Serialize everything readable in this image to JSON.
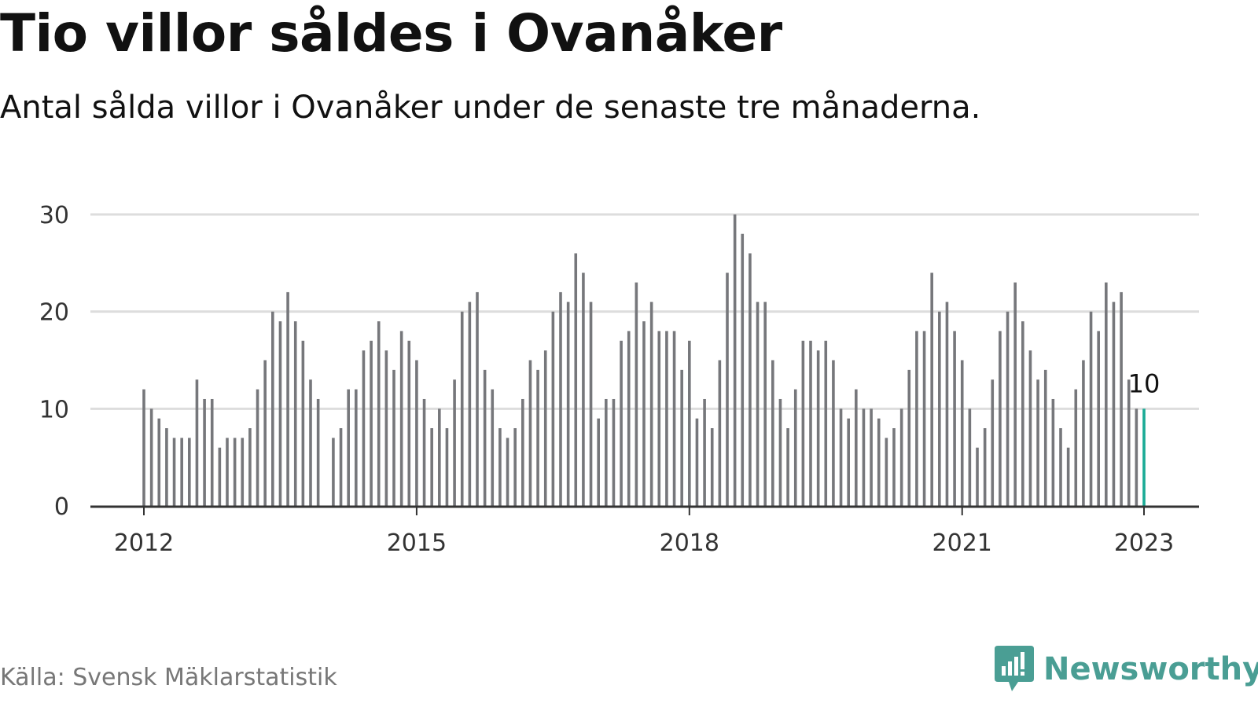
{
  "header": {
    "title": "Tio villor såldes i Ovanåker",
    "subtitle": "Antal sålda villor i Ovanåker under de senaste tre månaderna."
  },
  "footer": {
    "source": "Källa: Svensk Mäklarstatistik",
    "brand": "Newsworthy",
    "brand_icon": "bar-chart-speech-bubble-icon"
  },
  "colors": {
    "bar": "#76777b",
    "highlight": "#1aab96",
    "grid": "#dddddd",
    "axis": "#333333",
    "brand": "#4a9e94"
  },
  "chart_data": {
    "type": "bar",
    "title": "Tio villor såldes i Ovanåker",
    "subtitle": "Antal sålda villor i Ovanåker under de senaste tre månaderna.",
    "xlabel": "",
    "ylabel": "",
    "x_start": "2012-01",
    "x_end": "2023-01",
    "x_ticks": [
      "2012",
      "2015",
      "2018",
      "2021",
      "2023"
    ],
    "y_ticks": [
      0,
      10,
      20,
      30
    ],
    "ylim": [
      0,
      30
    ],
    "grid": true,
    "highlight_last": true,
    "annotation": {
      "x": "2023-01",
      "text": "10"
    },
    "series": [
      {
        "values": [
          12,
          10,
          9,
          8,
          7,
          7,
          7,
          13,
          11,
          11,
          6,
          7,
          7,
          7,
          8,
          12,
          15,
          20,
          19,
          22,
          19,
          17,
          13,
          11,
          null,
          7,
          8,
          12,
          12,
          16,
          17,
          19,
          16,
          14,
          18,
          17,
          15,
          11,
          8,
          10,
          8,
          13,
          20,
          21,
          22,
          14,
          12,
          8,
          7,
          8,
          11,
          15,
          14,
          16,
          20,
          22,
          21,
          26,
          24,
          21,
          9,
          11,
          11,
          17,
          18,
          23,
          19,
          21,
          18,
          18,
          18,
          14,
          17,
          9,
          11,
          8,
          15,
          24,
          30,
          28,
          26,
          21,
          21,
          15,
          11,
          8,
          12,
          17,
          17,
          16,
          17,
          15,
          10,
          9,
          12,
          10,
          10,
          9,
          7,
          8,
          10,
          14,
          18,
          18,
          24,
          20,
          21,
          18,
          15,
          10,
          6,
          8,
          13,
          18,
          20,
          23,
          19,
          16,
          13,
          14,
          11,
          8,
          6,
          12,
          15,
          20,
          18,
          23,
          21,
          22,
          13,
          10,
          10
        ]
      }
    ]
  }
}
